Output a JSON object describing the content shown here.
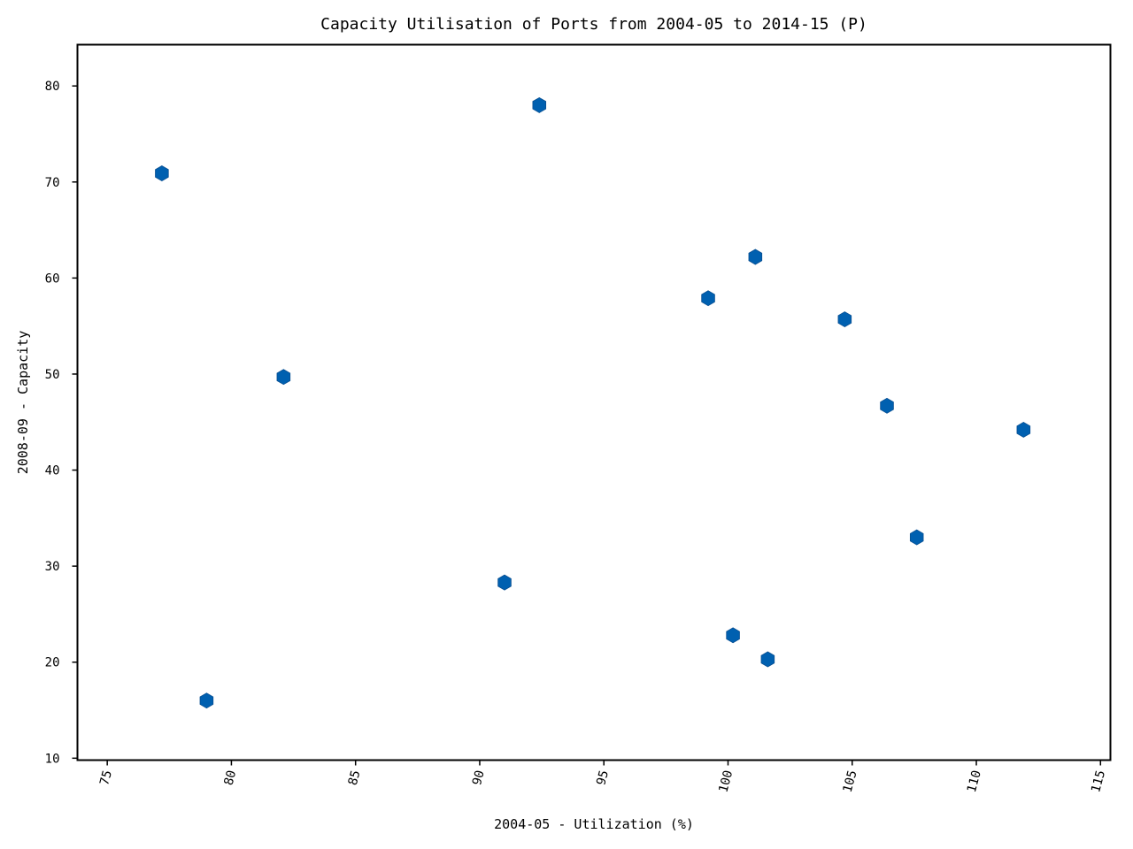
{
  "chart_data": {
    "type": "scatter",
    "title": "Capacity Utilisation of Ports from 2004-05 to 2014-15 (P)",
    "xlabel": "2004-05 - Utilization (%)",
    "ylabel": "2008-09 - Capacity",
    "xlim": [
      73.8,
      115.4
    ],
    "ylim": [
      9.8,
      84.3
    ],
    "xticks": [
      75,
      80,
      85,
      90,
      95,
      100,
      105,
      110,
      115
    ],
    "yticks": [
      10,
      20,
      30,
      40,
      50,
      60,
      70,
      80
    ],
    "marker": "hexagon",
    "color": "#0060b0",
    "grid": false,
    "series": [
      {
        "points": [
          {
            "x": 77.2,
            "y": 70.9
          },
          {
            "x": 79.0,
            "y": 16.0
          },
          {
            "x": 82.1,
            "y": 49.7
          },
          {
            "x": 91.0,
            "y": 28.3
          },
          {
            "x": 92.4,
            "y": 78.0
          },
          {
            "x": 99.2,
            "y": 57.9
          },
          {
            "x": 100.2,
            "y": 22.8
          },
          {
            "x": 101.1,
            "y": 62.2
          },
          {
            "x": 101.6,
            "y": 20.3
          },
          {
            "x": 104.7,
            "y": 55.7
          },
          {
            "x": 106.4,
            "y": 46.7
          },
          {
            "x": 107.6,
            "y": 33.0
          },
          {
            "x": 111.9,
            "y": 44.2
          }
        ]
      }
    ]
  }
}
